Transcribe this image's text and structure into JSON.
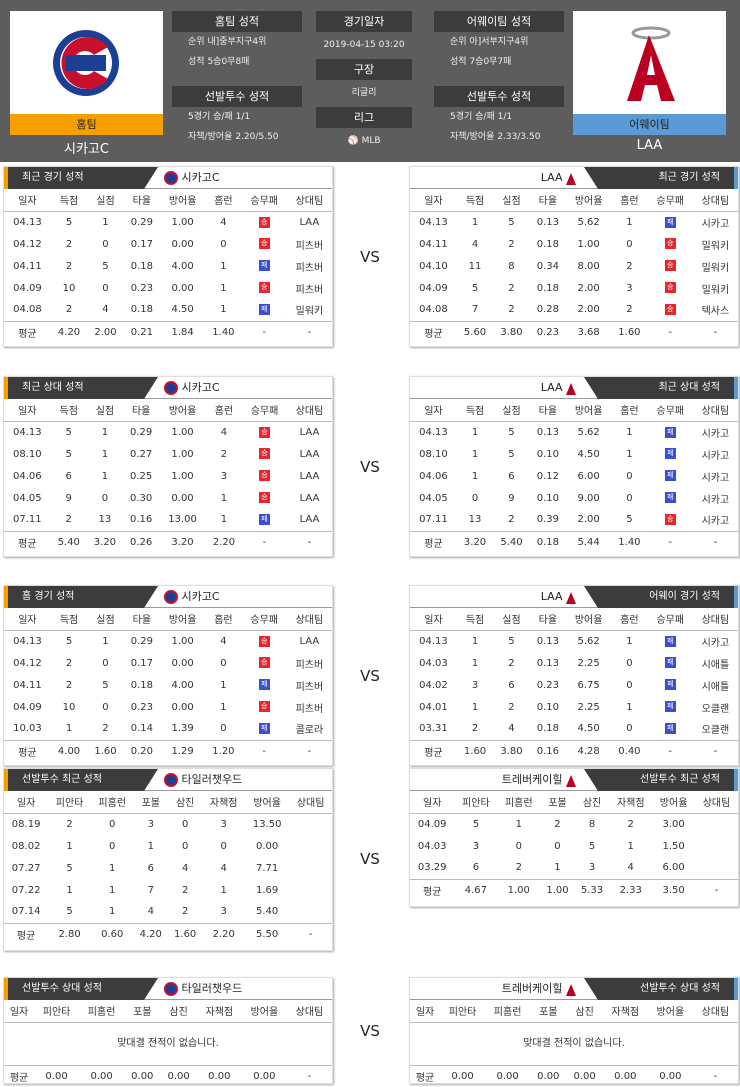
{
  "home": {
    "name": "시카고C",
    "short": "시카고C",
    "label": "홈팀",
    "info_title": "홈팀 성적",
    "rank_label": "순위",
    "rank": "내]중부지구4위",
    "record_label": "성적",
    "record": "5승0무8패",
    "pitcher_title": "선발투수 성적",
    "p5_label": "5경기 승/패",
    "p5": "1/1",
    "era_label": "자책/방어율",
    "era": "2.20/5.50"
  },
  "away": {
    "name": "LAA",
    "short": "LAA",
    "label": "어웨이팀",
    "info_title": "어웨이팀 성적",
    "rank_label": "순위",
    "rank": "아]서부지구4위",
    "record_label": "성적",
    "record": "7승0무7패",
    "pitcher_title": "선발투수 성적",
    "p5_label": "5경기 승/패",
    "p5": "1/1",
    "era_label": "자책/방어율",
    "era": "2.33/3.50"
  },
  "center": {
    "date_label": "경기일자",
    "date": "2019-04-15 03:20",
    "venue_label": "구장",
    "venue": "리글리",
    "league_label": "리그",
    "league": "MLB"
  },
  "vs": "VS",
  "hdr": [
    "일자",
    "득점",
    "실점",
    "타율",
    "방어율",
    "홈런",
    "승무패",
    "상대팀"
  ],
  "phdr": [
    "일자",
    "피안타",
    "피홈런",
    "포볼",
    "삼진",
    "자책점",
    "방어율",
    "상대팀"
  ],
  "res": {
    "W": "승",
    "L": "패"
  },
  "sections": [
    {
      "ltitle": "최근 경기 성적",
      "rtitle": "최근 경기 성적",
      "left": [
        [
          "04.13",
          "5",
          "1",
          "0.29",
          "1.00",
          "4",
          "W",
          "LAA"
        ],
        [
          "04.12",
          "2",
          "0",
          "0.17",
          "0.00",
          "0",
          "W",
          "피츠버"
        ],
        [
          "04.11",
          "2",
          "5",
          "0.18",
          "4.00",
          "1",
          "L",
          "피츠버"
        ],
        [
          "04.09",
          "10",
          "0",
          "0.23",
          "0.00",
          "1",
          "W",
          "피츠버"
        ],
        [
          "04.08",
          "2",
          "4",
          "0.18",
          "4.50",
          "1",
          "L",
          "밀워키"
        ]
      ],
      "lavg": [
        "평균",
        "4.20",
        "2.00",
        "0.21",
        "1.84",
        "1.40",
        "-",
        "-"
      ],
      "right": [
        [
          "04.13",
          "1",
          "5",
          "0.13",
          "5.62",
          "1",
          "L",
          "시카고"
        ],
        [
          "04.11",
          "4",
          "2",
          "0.18",
          "1.00",
          "0",
          "W",
          "밀워키"
        ],
        [
          "04.10",
          "11",
          "8",
          "0.34",
          "8.00",
          "2",
          "W",
          "밀워키"
        ],
        [
          "04.09",
          "5",
          "2",
          "0.18",
          "2.00",
          "3",
          "W",
          "밀워키"
        ],
        [
          "04.08",
          "7",
          "2",
          "0.28",
          "2.00",
          "2",
          "W",
          "텍사스"
        ]
      ],
      "ravg": [
        "평균",
        "5.60",
        "3.80",
        "0.23",
        "3.68",
        "1.60",
        "-",
        "-"
      ]
    },
    {
      "ltitle": "최근 상대 성적",
      "rtitle": "최근 상대 성적",
      "left": [
        [
          "04.13",
          "5",
          "1",
          "0.29",
          "1.00",
          "4",
          "W",
          "LAA"
        ],
        [
          "08.10",
          "5",
          "1",
          "0.27",
          "1.00",
          "2",
          "W",
          "LAA"
        ],
        [
          "04.06",
          "6",
          "1",
          "0.25",
          "1.00",
          "3",
          "W",
          "LAA"
        ],
        [
          "04.05",
          "9",
          "0",
          "0.30",
          "0.00",
          "1",
          "W",
          "LAA"
        ],
        [
          "07.11",
          "2",
          "13",
          "0.16",
          "13.00",
          "1",
          "L",
          "LAA"
        ]
      ],
      "lavg": [
        "평균",
        "5.40",
        "3.20",
        "0.26",
        "3.20",
        "2.20",
        "-",
        "-"
      ],
      "right": [
        [
          "04.13",
          "1",
          "5",
          "0.13",
          "5.62",
          "1",
          "L",
          "시카고"
        ],
        [
          "08.10",
          "1",
          "5",
          "0.10",
          "4.50",
          "1",
          "L",
          "시카고"
        ],
        [
          "04.06",
          "1",
          "6",
          "0.12",
          "6.00",
          "0",
          "L",
          "시카고"
        ],
        [
          "04.05",
          "0",
          "9",
          "0.10",
          "9.00",
          "0",
          "L",
          "시카고"
        ],
        [
          "07.11",
          "13",
          "2",
          "0.39",
          "2.00",
          "5",
          "W",
          "시카고"
        ]
      ],
      "ravg": [
        "평균",
        "3.20",
        "5.40",
        "0.18",
        "5.44",
        "1.40",
        "-",
        "-"
      ]
    },
    {
      "ltitle": "홈 경기 성적",
      "rtitle": "어웨이 경기 성적",
      "left": [
        [
          "04.13",
          "5",
          "1",
          "0.29",
          "1.00",
          "4",
          "W",
          "LAA"
        ],
        [
          "04.12",
          "2",
          "0",
          "0.17",
          "0.00",
          "0",
          "W",
          "피츠버"
        ],
        [
          "04.11",
          "2",
          "5",
          "0.18",
          "4.00",
          "1",
          "L",
          "피츠버"
        ],
        [
          "04.09",
          "10",
          "0",
          "0.23",
          "0.00",
          "1",
          "W",
          "피츠버"
        ],
        [
          "10.03",
          "1",
          "2",
          "0.14",
          "1.39",
          "0",
          "L",
          "콜로라"
        ]
      ],
      "lavg": [
        "평균",
        "4.00",
        "1.60",
        "0.20",
        "1.29",
        "1.20",
        "-",
        "-"
      ],
      "right": [
        [
          "04.13",
          "1",
          "5",
          "0.13",
          "5.62",
          "1",
          "L",
          "시카고"
        ],
        [
          "04.03",
          "1",
          "2",
          "0.13",
          "2.25",
          "0",
          "L",
          "시애틀"
        ],
        [
          "04.02",
          "3",
          "6",
          "0.23",
          "6.75",
          "0",
          "L",
          "시애틀"
        ],
        [
          "04.01",
          "1",
          "2",
          "0.10",
          "2.25",
          "1",
          "L",
          "오클랜"
        ],
        [
          "03.31",
          "2",
          "4",
          "0.18",
          "4.50",
          "0",
          "L",
          "오클랜"
        ]
      ],
      "ravg": [
        "평균",
        "1.60",
        "3.80",
        "0.16",
        "4.28",
        "0.40",
        "-",
        "-"
      ]
    }
  ],
  "pitchers": {
    "home": "타일러챗우드",
    "away": "트레버케이힐",
    "recent": {
      "ltitle": "선발투수 최근 성적",
      "rtitle": "선발투수 최근 성적",
      "left": [
        [
          "08.19",
          "2",
          "0",
          "3",
          "0",
          "3",
          "13.50",
          ""
        ],
        [
          "08.02",
          "1",
          "0",
          "1",
          "0",
          "0",
          "0.00",
          ""
        ],
        [
          "07.27",
          "5",
          "1",
          "6",
          "4",
          "4",
          "7.71",
          ""
        ],
        [
          "07.22",
          "1",
          "1",
          "7",
          "2",
          "1",
          "1.69",
          ""
        ],
        [
          "07.14",
          "5",
          "1",
          "4",
          "2",
          "3",
          "5.40",
          ""
        ]
      ],
      "lavg": [
        "평균",
        "2.80",
        "0.60",
        "4.20",
        "1.60",
        "2.20",
        "5.50",
        "-"
      ],
      "right": [
        [
          "04.09",
          "5",
          "1",
          "2",
          "8",
          "2",
          "3.00",
          ""
        ],
        [
          "04.03",
          "3",
          "0",
          "0",
          "5",
          "1",
          "1.50",
          ""
        ],
        [
          "03.29",
          "6",
          "2",
          "1",
          "3",
          "4",
          "6.00",
          ""
        ]
      ],
      "ravg": [
        "평균",
        "4.67",
        "1.00",
        "1.00",
        "5.33",
        "2.33",
        "3.50",
        "-"
      ]
    },
    "vs": {
      "ltitle": "선발투수 상대 성적",
      "rtitle": "선발투수 상대 성적",
      "nodata": "맞대결 전적이 없습니다.",
      "lavg": [
        "평균",
        "0.00",
        "0.00",
        "0.00",
        "0.00",
        "0.00",
        "0.00",
        "-"
      ],
      "ravg": [
        "평균",
        "0.00",
        "0.00",
        "0.00",
        "0.00",
        "0.00",
        "0.00",
        "-"
      ]
    }
  }
}
